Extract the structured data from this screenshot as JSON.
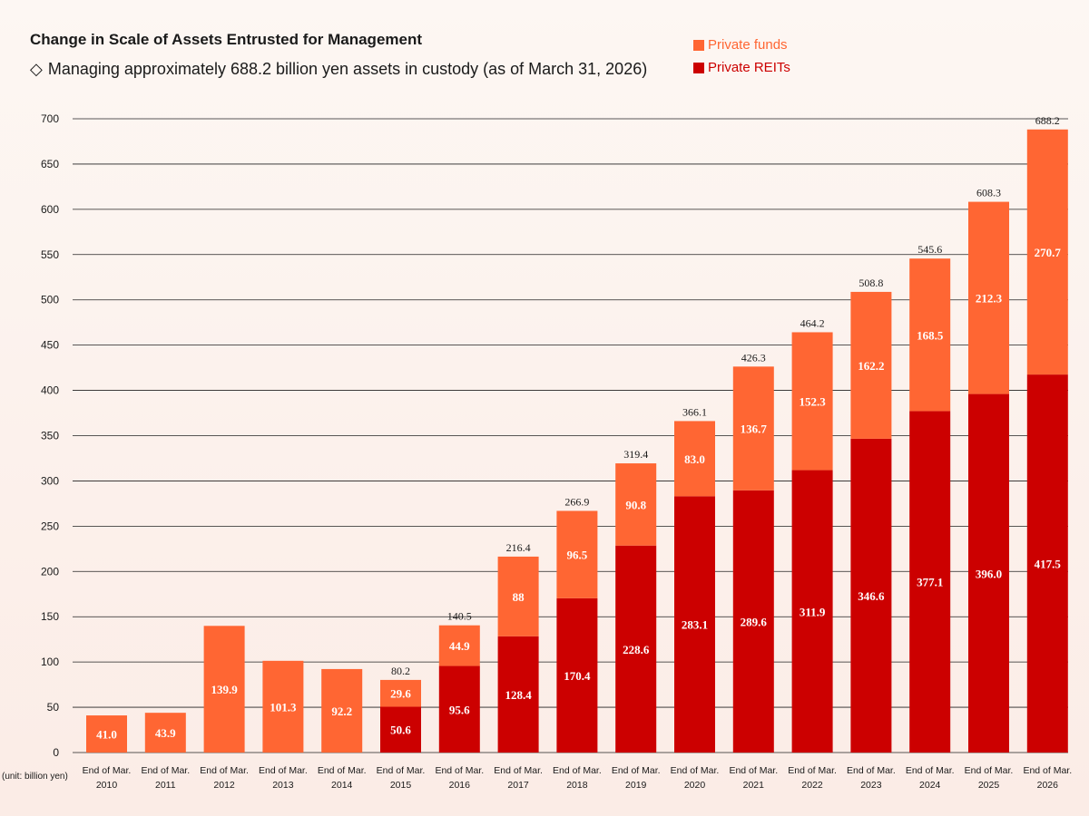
{
  "title": "Change in Scale of Assets Entrusted for Management",
  "subtitle": {
    "symbol": "◇",
    "text": "Managing approximately 688.2 billion yen assets in custody (as of March 31, 2026)"
  },
  "unit_label": "(unit: billion yen)",
  "colors": {
    "private_funds": "#ff6633",
    "private_reits": "#cc0000"
  },
  "chart_data": {
    "type": "bar",
    "stacked": true,
    "categories": [
      [
        "End of Mar.",
        "2010"
      ],
      [
        "End of Mar.",
        "2011"
      ],
      [
        "End of Mar.",
        "2012"
      ],
      [
        "End of Mar.",
        "2013"
      ],
      [
        "End of Mar.",
        "2014"
      ],
      [
        "End of Mar.",
        "2015"
      ],
      [
        "End of Mar.",
        "2016"
      ],
      [
        "End of Mar.",
        "2017"
      ],
      [
        "End of Mar.",
        "2018"
      ],
      [
        "End of Mar.",
        "2019"
      ],
      [
        "End of Mar.",
        "2020"
      ],
      [
        "End of Mar.",
        "2021"
      ],
      [
        "End of Mar.",
        "2022"
      ],
      [
        "End of Mar.",
        "2023"
      ],
      [
        "End of Mar.",
        "2024"
      ],
      [
        "End of Mar.",
        "2025"
      ],
      [
        "End of Mar.",
        "2026"
      ]
    ],
    "series": [
      {
        "name": "Private REITs",
        "color": "#cc0000",
        "values": [
          null,
          null,
          null,
          null,
          null,
          50.6,
          95.6,
          128.4,
          170.4,
          228.6,
          283.1,
          289.6,
          311.9,
          346.6,
          377.1,
          396.0,
          417.5
        ],
        "labels": [
          "",
          "",
          "",
          "",
          "",
          "50.6",
          "95.6",
          "128.4",
          "170.4",
          "228.6",
          "283.1",
          "289.6",
          "311.9",
          "346.6",
          "377.1",
          "396.0",
          "417.5"
        ]
      },
      {
        "name": "Private funds",
        "color": "#ff6633",
        "values": [
          41.0,
          43.9,
          139.9,
          101.3,
          92.2,
          29.6,
          44.9,
          88,
          96.5,
          90.8,
          83.0,
          136.7,
          152.3,
          162.2,
          168.5,
          212.3,
          270.7
        ],
        "labels": [
          "41.0",
          "43.9",
          "139.9",
          "101.3",
          "92.2",
          "29.6",
          "44.9",
          "88",
          "96.5",
          "90.8",
          "83.0",
          "136.7",
          "152.3",
          "162.2",
          "168.5",
          "212.3",
          "270.7"
        ]
      }
    ],
    "totals": [
      "",
      "",
      "",
      "",
      "",
      "80.2",
      "140.5",
      "216.4",
      "266.9",
      "319.4",
      "366.1",
      "426.3",
      "464.2",
      "508.8",
      "545.6",
      "608.3",
      "688.2"
    ],
    "total_values": [
      null,
      null,
      null,
      null,
      null,
      80.2,
      140.5,
      216.4,
      266.9,
      319.4,
      366.1,
      426.3,
      464.2,
      508.8,
      545.6,
      608.3,
      688.2
    ],
    "ylim": [
      0,
      700
    ],
    "yticks": [
      0,
      50,
      100,
      150,
      200,
      250,
      300,
      350,
      400,
      450,
      500,
      550,
      600,
      650,
      700
    ],
    "grid": true,
    "legend_position": "top-right",
    "legend_order": [
      "Private funds",
      "Private REITs"
    ],
    "xlabel": "",
    "ylabel": ""
  }
}
